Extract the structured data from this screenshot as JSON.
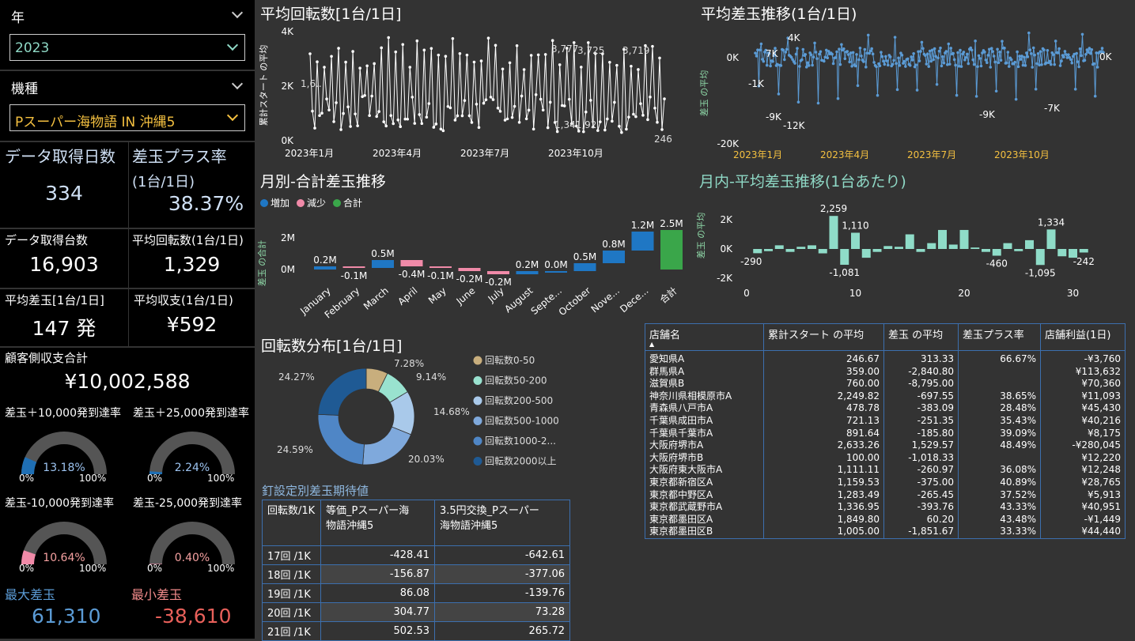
{
  "slicers": {
    "year_title": "年",
    "year_value": "2023",
    "model_title": "機種",
    "model_value": "Pスーパー海物語 IN 沖縄5"
  },
  "kpis": {
    "days_label": "データ取得日数",
    "days_value": "334",
    "plus_rate_label1": "差玉プラス率",
    "plus_rate_label2": "(1台/1日)",
    "plus_rate_value": "38.37%",
    "units_label": "データ取得台数",
    "units_value": "16,903",
    "avg_spin_label": "平均回転数(1台/1日)",
    "avg_spin_value": "1,329",
    "avg_diff_label": "平均差玉[1台/1日]",
    "avg_diff_value": "147 発",
    "avg_income_label": "平均収支(1台/1日)",
    "avg_income_value": "¥592",
    "customer_total_label": "顧客側収支合計",
    "customer_total_value": "¥10,002,588"
  },
  "gauges": [
    {
      "label": "差玉＋10,000発到達率",
      "value": "13.18%",
      "fraction": 0.1318,
      "color": "#1f6fb4",
      "value_color": "#9cc3f0",
      "min": "0%",
      "max": "100%"
    },
    {
      "label": "差玉＋25,000発到達率",
      "value": "2.24%",
      "fraction": 0.0224,
      "color": "#1f6fb4",
      "value_color": "#9cc3f0",
      "min": "0%",
      "max": "100%"
    },
    {
      "label": "差玉-10,000発到達率",
      "value": "10.64%",
      "fraction": 0.1064,
      "color": "#f08aa8",
      "value_color": "#f5a0a0",
      "min": "0%",
      "max": "100%"
    },
    {
      "label": "差玉-25,000発到達率",
      "value": "0.40%",
      "fraction": 0.004,
      "color": "#f08aa8",
      "value_color": "#f5a0a0",
      "min": "0%",
      "max": "100%"
    }
  ],
  "extremes": {
    "max_label": "最大差玉",
    "max_value": "61,310",
    "min_label": "最小差玉",
    "min_value": "-38,610"
  },
  "charts": {
    "avg_spin_title": "平均回転数[1台/1日]",
    "avg_diff_title": "平均差玉推移(1台/1日)",
    "monthly_title": "月別-合計差玉推移",
    "daily_title": "月内-平均差玉推移(1台あたり)",
    "donut_title": "回転数分布[1台/1日]",
    "nail_title": "釘設定別差玉期待値"
  },
  "chart_data": [
    {
      "type": "line",
      "title": "平均回転数[1台/1日]",
      "ylabel": "累計スタート の平均",
      "yticks": [
        "0K",
        "2K",
        "4K"
      ],
      "ylim": [
        0,
        4000
      ],
      "xticks": [
        "2023年1月",
        "2023年4月",
        "2023年7月",
        "2023年10月"
      ],
      "annotations": [
        "1,6..",
        "3,777",
        "3,725",
        "3,719",
        "1,341,92",
        "246"
      ],
      "color": "#ffffff"
    },
    {
      "type": "line",
      "title": "平均差玉推移(1台/1日)",
      "ylabel": "差玉 の平均",
      "yticks": [
        "0K",
        "-20K"
      ],
      "ylim": [
        -20000,
        6000
      ],
      "xticks": [
        "2023年1月",
        "2023年4月",
        "2023年7月",
        "2023年10月"
      ],
      "annotations": [
        "4K",
        "7K",
        "-1K",
        "-9K",
        "-12K",
        "-9K",
        "-7K",
        "0K"
      ],
      "color": "#5b9bd5"
    },
    {
      "type": "bar",
      "subtype": "waterfall",
      "title": "月別-合計差玉推移",
      "ylabel": "差玉 の合計",
      "legend": [
        "増加",
        "減少",
        "合計"
      ],
      "legend_colors": [
        "#1f77c4",
        "#f08aa8",
        "#3aa64a"
      ],
      "yticks": [
        "0M",
        "2M"
      ],
      "categories": [
        "January",
        "February",
        "March",
        "April",
        "May",
        "June",
        "July",
        "August",
        "Septe...",
        "October",
        "Nove...",
        "Dece...",
        "合計"
      ],
      "labels": [
        "0.2M",
        "-0.1M",
        "0.5M",
        "-0.4M",
        "-0.1M",
        "-0.2M",
        "-0.2M",
        "0.2M",
        "0.0M",
        "0.5M",
        "0.8M",
        "1.2M",
        "2.5M"
      ],
      "values": [
        0.2,
        -0.1,
        0.5,
        -0.4,
        -0.1,
        -0.2,
        -0.2,
        0.2,
        0.0,
        0.5,
        0.8,
        1.2,
        2.5
      ]
    },
    {
      "type": "bar",
      "title": "月内-平均差玉推移(1台あたり)",
      "ylabel": "差玉 の平均",
      "yticks": [
        "2K",
        "0K",
        "-2K"
      ],
      "ylim": [
        -2000,
        2500
      ],
      "xticks": [
        "0",
        "10",
        "20",
        "30"
      ],
      "x": [
        1,
        2,
        3,
        4,
        5,
        6,
        7,
        8,
        9,
        10,
        11,
        12,
        13,
        14,
        15,
        16,
        17,
        18,
        19,
        20,
        21,
        22,
        23,
        24,
        25,
        26,
        27,
        28,
        29,
        30,
        31
      ],
      "values": [
        -290,
        -150,
        250,
        -200,
        150,
        250,
        -300,
        2259,
        -1081,
        1110,
        -600,
        -200,
        200,
        150,
        1000,
        -200,
        400,
        1300,
        300,
        1300,
        100,
        -200,
        -460,
        400,
        -150,
        600,
        -1095,
        1334,
        -500,
        -600,
        -242
      ],
      "labels": [
        "-290",
        "2,259",
        "1,110",
        "-1,081",
        "-460",
        "1,334",
        "-1,095",
        "-242"
      ],
      "color": "#8fdcc8"
    },
    {
      "type": "pie",
      "subtype": "donut",
      "title": "回転数分布[1台/1日]",
      "categories": [
        "回転数0-50",
        "回転数50-200",
        "回転数200-500",
        "回転数500-1000",
        "回転数1000-2...",
        "回転数2000以上"
      ],
      "values": [
        7.28,
        9.14,
        14.68,
        20.03,
        24.59,
        24.27
      ],
      "labels": [
        "7.28%",
        "9.14%",
        "14.68%",
        "20.03%",
        "24.59%",
        "24.27%"
      ],
      "colors": [
        "#c8ae7d",
        "#99e2cf",
        "#a9c9ea",
        "#7fa9dc",
        "#4f86c6",
        "#1f5a94"
      ]
    }
  ],
  "nail_table": {
    "headers": [
      "回転数/1K",
      "等価_Pスーパー海物語沖縄5",
      "3.5円交換_Pスーパー海物語沖縄5"
    ],
    "header_lines": [
      [
        "回転数/1K"
      ],
      [
        "等価_Pスーパー海",
        "物語沖縄5"
      ],
      [
        "3.5円交換_Pスーパー",
        "海物語沖縄5"
      ]
    ],
    "rows": [
      [
        "17回 /1K",
        "-428.41",
        "-642.61"
      ],
      [
        "18回 /1K",
        "-156.87",
        "-377.06"
      ],
      [
        "19回 /1K",
        "86.08",
        "-139.76"
      ],
      [
        "20回 /1K",
        "304.77",
        "73.28"
      ],
      [
        "21回 /1K",
        "502.53",
        "265.72"
      ]
    ]
  },
  "store_table": {
    "headers": [
      "店舗名",
      "累計スタート の平均",
      "差玉 の平均",
      "差玉プラス率",
      "店舗利益(1日)"
    ],
    "rows": [
      [
        "愛知県A",
        "246.67",
        "313.33",
        "66.67%",
        "-¥3,760"
      ],
      [
        "群馬県A",
        "359.00",
        "-2,840.80",
        "",
        "¥113,632"
      ],
      [
        "滋賀県B",
        "760.00",
        "-8,795.00",
        "",
        "¥70,360"
      ],
      [
        "神奈川県相模原市A",
        "2,249.82",
        "-697.55",
        "38.65%",
        "¥11,093"
      ],
      [
        "青森県八戸市A",
        "478.78",
        "-383.09",
        "28.48%",
        "¥45,430"
      ],
      [
        "千葉県成田市A",
        "721.13",
        "-251.35",
        "35.43%",
        "¥40,216"
      ],
      [
        "千葉県千葉市A",
        "891.64",
        "-185.80",
        "39.09%",
        "¥8,175"
      ],
      [
        "大阪府堺市A",
        "2,633.26",
        "1,529.57",
        "48.49%",
        "-¥280,045"
      ],
      [
        "大阪府堺市B",
        "100.00",
        "-1,018.33",
        "",
        "¥12,220"
      ],
      [
        "大阪府東大阪市A",
        "1,111.11",
        "-260.97",
        "36.08%",
        "¥12,248"
      ],
      [
        "東京都新宿区A",
        "1,159.53",
        "-375.00",
        "40.89%",
        "¥28,765"
      ],
      [
        "東京都中野区A",
        "1,283.49",
        "-265.45",
        "37.52%",
        "¥5,913"
      ],
      [
        "東京都武蔵野市A",
        "1,336.95",
        "-393.76",
        "43.33%",
        "¥40,951"
      ],
      [
        "東京都墨田区A",
        "1,849.80",
        "60.20",
        "43.48%",
        "-¥1,449"
      ],
      [
        "東京都墨田区B",
        "1,005.00",
        "-1,851.67",
        "33.33%",
        "¥44,440"
      ]
    ]
  }
}
